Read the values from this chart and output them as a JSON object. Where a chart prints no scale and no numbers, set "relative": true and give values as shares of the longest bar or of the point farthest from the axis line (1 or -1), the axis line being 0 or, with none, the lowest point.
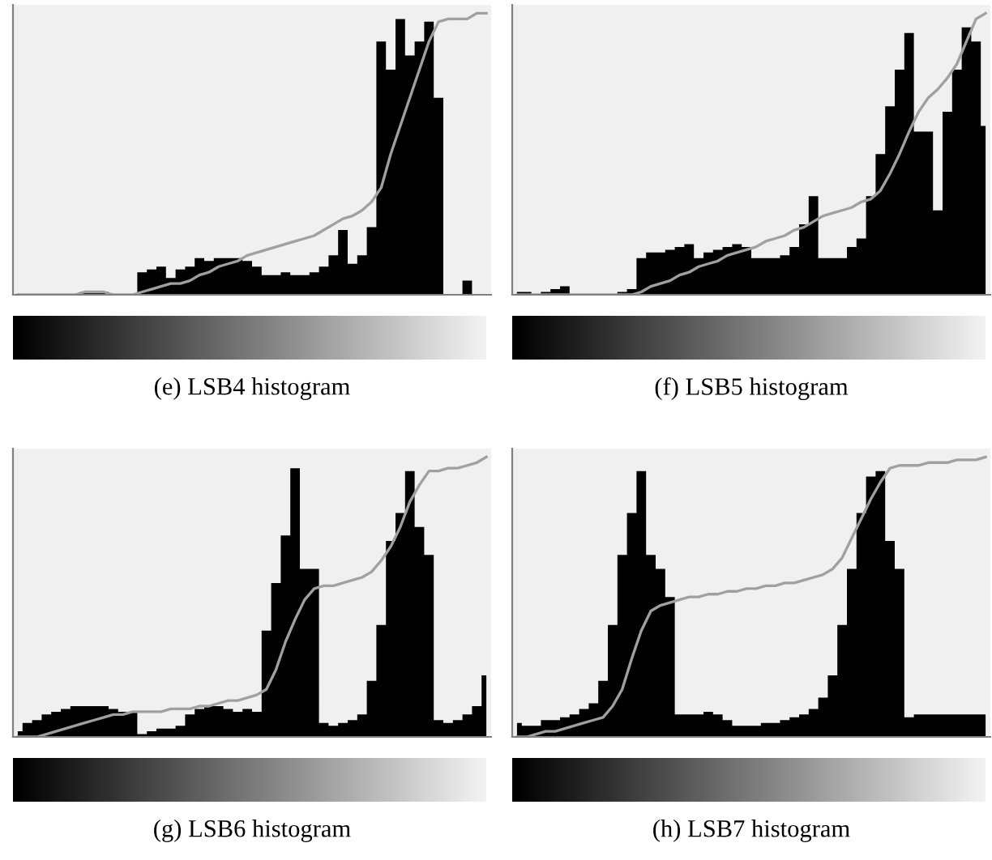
{
  "chart_data": [
    {
      "type": "area",
      "title": "(e) LSB4 histogram",
      "relative": true,
      "categories": [
        null,
        null,
        null,
        null,
        null,
        null,
        null,
        null,
        null,
        null,
        null,
        null,
        null,
        null,
        null,
        null,
        null,
        null,
        null,
        null,
        null,
        null,
        null,
        null,
        null,
        null,
        null,
        null,
        null,
        null,
        null,
        null,
        null,
        null,
        null,
        null,
        null,
        null,
        null,
        null,
        null,
        null,
        null,
        null,
        null,
        null,
        null,
        null,
        null,
        null
      ],
      "series": [
        {
          "color": "#000000",
          "values": [
            0,
            0,
            0,
            0,
            0,
            0,
            0,
            0.01,
            0.01,
            0.01,
            0,
            0,
            0,
            0.08,
            0.09,
            0.1,
            0.06,
            0.09,
            0.1,
            0.13,
            0.12,
            0.13,
            0.13,
            0.13,
            0.12,
            0.1,
            0.07,
            0.07,
            0.08,
            0.07,
            0.07,
            0.08,
            0.1,
            0.14,
            0.23,
            0.11,
            0.14,
            0.24,
            0.9,
            0.8,
            0.98,
            0.85,
            0.9,
            0.97,
            0.7,
            0,
            0,
            0.05,
            0,
            0
          ]
        },
        {
          "type": "line",
          "color": "#a0a0a0",
          "values": [
            0,
            0,
            0,
            0,
            0,
            0,
            0,
            0.01,
            0.01,
            0.01,
            0,
            0,
            0,
            0.01,
            0.02,
            0.03,
            0.04,
            0.04,
            0.05,
            0.07,
            0.08,
            0.1,
            0.11,
            0.12,
            0.14,
            0.15,
            0.16,
            0.17,
            0.18,
            0.19,
            0.2,
            0.21,
            0.23,
            0.25,
            0.27,
            0.28,
            0.3,
            0.33,
            0.38,
            0.5,
            0.6,
            0.7,
            0.8,
            0.9,
            0.97,
            0.98,
            0.98,
            0.98,
            1.0,
            1.0
          ]
        }
      ]
    },
    {
      "type": "area",
      "title": "(f) LSB5 histogram",
      "relative": true,
      "categories": [
        null,
        null,
        null,
        null,
        null,
        null,
        null,
        null,
        null,
        null,
        null,
        null,
        null,
        null,
        null,
        null,
        null,
        null,
        null,
        null,
        null,
        null,
        null,
        null,
        null,
        null,
        null,
        null,
        null,
        null,
        null,
        null,
        null,
        null,
        null,
        null,
        null,
        null,
        null,
        null,
        null,
        null,
        null,
        null,
        null,
        null,
        null,
        null,
        null,
        null
      ],
      "series": [
        {
          "color": "#000000",
          "values": [
            0.01,
            0.01,
            0,
            0.01,
            0.02,
            0.03,
            0,
            0,
            0,
            0,
            0,
            0.01,
            0.02,
            0.13,
            0.15,
            0.15,
            0.16,
            0.17,
            0.18,
            0.13,
            0.15,
            0.16,
            0.17,
            0.18,
            0.17,
            0.13,
            0.13,
            0.13,
            0.14,
            0.17,
            0.25,
            0.35,
            0.13,
            0.13,
            0.13,
            0.17,
            0.2,
            0.35,
            0.5,
            0.67,
            0.8,
            0.93,
            0.58,
            0.58,
            0.3,
            0.65,
            0.8,
            0.95,
            0.9,
            0.6
          ]
        },
        {
          "type": "line",
          "color": "#a0a0a0",
          "values": [
            0,
            0,
            0,
            0,
            0,
            0,
            0,
            0,
            0,
            0,
            0,
            0,
            0,
            0.01,
            0.03,
            0.04,
            0.05,
            0.07,
            0.08,
            0.1,
            0.11,
            0.12,
            0.14,
            0.15,
            0.16,
            0.17,
            0.19,
            0.2,
            0.21,
            0.23,
            0.24,
            0.26,
            0.28,
            0.29,
            0.3,
            0.31,
            0.33,
            0.34,
            0.37,
            0.43,
            0.5,
            0.58,
            0.65,
            0.7,
            0.73,
            0.77,
            0.82,
            0.9,
            0.98,
            1.0
          ]
        }
      ]
    },
    {
      "type": "area",
      "title": "(g) LSB6 histogram",
      "relative": true,
      "categories": [
        null,
        null,
        null,
        null,
        null,
        null,
        null,
        null,
        null,
        null,
        null,
        null,
        null,
        null,
        null,
        null,
        null,
        null,
        null,
        null,
        null,
        null,
        null,
        null,
        null,
        null,
        null,
        null,
        null,
        null,
        null,
        null,
        null,
        null,
        null,
        null,
        null,
        null,
        null,
        null,
        null,
        null,
        null,
        null,
        null,
        null,
        null,
        null,
        null,
        null
      ],
      "series": [
        {
          "color": "#000000",
          "values": [
            0.02,
            0.05,
            0.06,
            0.08,
            0.09,
            0.1,
            0.11,
            0.11,
            0.11,
            0.11,
            0.1,
            0.09,
            0.09,
            0.01,
            0.02,
            0.03,
            0.03,
            0.04,
            0.08,
            0.1,
            0.11,
            0.11,
            0.1,
            0.09,
            0.1,
            0.09,
            0.38,
            0.55,
            0.72,
            0.96,
            0.6,
            0.6,
            0.05,
            0.04,
            0.05,
            0.06,
            0.08,
            0.2,
            0.4,
            0.7,
            0.8,
            0.95,
            0.75,
            0.65,
            0.06,
            0.05,
            0.06,
            0.08,
            0.11,
            0.22
          ]
        },
        {
          "type": "line",
          "color": "#a0a0a0",
          "values": [
            0,
            0,
            0,
            0.01,
            0.02,
            0.03,
            0.04,
            0.05,
            0.06,
            0.07,
            0.08,
            0.08,
            0.09,
            0.09,
            0.09,
            0.09,
            0.1,
            0.1,
            0.1,
            0.11,
            0.11,
            0.12,
            0.13,
            0.13,
            0.14,
            0.15,
            0.17,
            0.24,
            0.34,
            0.42,
            0.49,
            0.53,
            0.54,
            0.54,
            0.55,
            0.56,
            0.57,
            0.59,
            0.63,
            0.68,
            0.75,
            0.84,
            0.9,
            0.95,
            0.95,
            0.96,
            0.96,
            0.97,
            0.98,
            1.0
          ]
        }
      ]
    },
    {
      "type": "area",
      "title": "(h) LSB7 histogram",
      "relative": true,
      "categories": [
        null,
        null,
        null,
        null,
        null,
        null,
        null,
        null,
        null,
        null,
        null,
        null,
        null,
        null,
        null,
        null,
        null,
        null,
        null,
        null,
        null,
        null,
        null,
        null,
        null,
        null,
        null,
        null,
        null,
        null,
        null,
        null,
        null,
        null,
        null,
        null,
        null,
        null,
        null,
        null,
        null,
        null,
        null,
        null,
        null,
        null,
        null,
        null,
        null,
        null
      ],
      "series": [
        {
          "color": "#000000",
          "values": [
            0.05,
            0.04,
            0.04,
            0.06,
            0.06,
            0.07,
            0.08,
            0.1,
            0.12,
            0.2,
            0.4,
            0.65,
            0.8,
            0.95,
            0.65,
            0.6,
            0.5,
            0.08,
            0.08,
            0.08,
            0.09,
            0.08,
            0.06,
            0.04,
            0.04,
            0.04,
            0.05,
            0.05,
            0.06,
            0.07,
            0.08,
            0.1,
            0.14,
            0.22,
            0.4,
            0.6,
            0.8,
            0.93,
            0.95,
            0.7,
            0.6,
            0.07,
            0.08,
            0.08,
            0.08,
            0.08,
            0.08,
            0.08,
            0.08,
            0.08
          ]
        },
        {
          "type": "line",
          "color": "#a0a0a0",
          "values": [
            0,
            0,
            0.01,
            0.02,
            0.02,
            0.03,
            0.04,
            0.05,
            0.06,
            0.07,
            0.11,
            0.17,
            0.28,
            0.38,
            0.45,
            0.47,
            0.48,
            0.49,
            0.5,
            0.5,
            0.51,
            0.51,
            0.52,
            0.52,
            0.53,
            0.53,
            0.54,
            0.54,
            0.55,
            0.55,
            0.56,
            0.57,
            0.58,
            0.6,
            0.64,
            0.71,
            0.78,
            0.85,
            0.91,
            0.96,
            0.97,
            0.97,
            0.97,
            0.98,
            0.98,
            0.98,
            0.99,
            0.99,
            0.99,
            1.0
          ]
        }
      ]
    }
  ]
}
